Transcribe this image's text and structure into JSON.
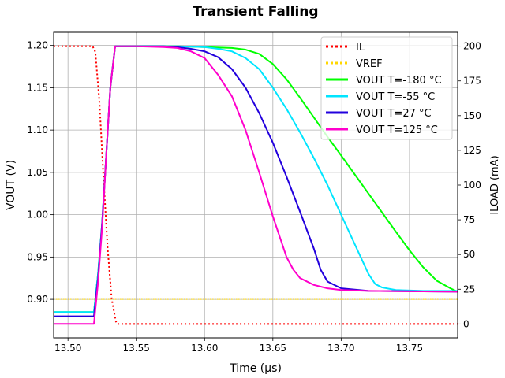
{
  "chart_data": {
    "type": "line",
    "title": "Transient Falling",
    "xlabel": "Time (µs)",
    "ylabel": "VOUT (V)",
    "y2label": "ILOAD (mA)",
    "xlim": [
      13.4895,
      13.7853
    ],
    "ylim": [
      0.8545,
      1.2155
    ],
    "y2lim": [
      -10,
      210
    ],
    "grid": true,
    "legend_position": "top-right",
    "x_ticks": [
      {
        "value": 13.5,
        "label": "13.50"
      },
      {
        "value": 13.55,
        "label": "13.55"
      },
      {
        "value": 13.6,
        "label": "13.60"
      },
      {
        "value": 13.65,
        "label": "13.65"
      },
      {
        "value": 13.7,
        "label": "13.70"
      },
      {
        "value": 13.75,
        "label": "13.75"
      }
    ],
    "y_ticks": [
      {
        "value": 0.9,
        "label": "0.90"
      },
      {
        "value": 0.95,
        "label": "0.95"
      },
      {
        "value": 1.0,
        "label": "1.00"
      },
      {
        "value": 1.05,
        "label": "1.05"
      },
      {
        "value": 1.1,
        "label": "1.10"
      },
      {
        "value": 1.15,
        "label": "1.15"
      },
      {
        "value": 1.2,
        "label": "1.20"
      }
    ],
    "y2_ticks": [
      {
        "value": 0,
        "label": "0"
      },
      {
        "value": 25,
        "label": "25"
      },
      {
        "value": 50,
        "label": "50"
      },
      {
        "value": 75,
        "label": "75"
      },
      {
        "value": 100,
        "label": "100"
      },
      {
        "value": 125,
        "label": "125"
      },
      {
        "value": 150,
        "label": "150"
      },
      {
        "value": 175,
        "label": "175"
      },
      {
        "value": 200,
        "label": "200"
      }
    ],
    "series": [
      {
        "name": "IL",
        "axis": "y2",
        "color": "#ff0000",
        "style": "dotted",
        "x": [
          13.4895,
          13.518,
          13.52,
          13.523,
          13.526,
          13.529,
          13.532,
          13.535,
          13.536,
          13.7853
        ],
        "y": [
          200,
          200,
          196,
          160,
          105,
          55,
          18,
          2,
          0,
          0
        ]
      },
      {
        "name": "VREF",
        "axis": "y",
        "color": "#ffd700",
        "style": "dotted",
        "x": [
          13.4895,
          13.7853
        ],
        "y": [
          0.9,
          0.9
        ]
      },
      {
        "name": "VOUT T=-180 °C",
        "axis": "y",
        "color": "#00ff00",
        "style": "solid",
        "x": [
          13.4895,
          13.519,
          13.522,
          13.525,
          13.528,
          13.531,
          13.5345,
          13.55,
          13.58,
          13.6,
          13.62,
          13.63,
          13.64,
          13.65,
          13.66,
          13.67,
          13.68,
          13.69,
          13.7,
          13.72,
          13.74,
          13.75,
          13.76,
          13.77,
          13.78,
          13.7853
        ],
        "y": [
          0.885,
          0.885,
          0.93,
          0.99,
          1.07,
          1.15,
          1.199,
          1.199,
          1.199,
          1.198,
          1.197,
          1.195,
          1.19,
          1.178,
          1.16,
          1.138,
          1.115,
          1.092,
          1.07,
          1.025,
          0.98,
          0.958,
          0.938,
          0.922,
          0.913,
          0.909
        ]
      },
      {
        "name": "VOUT T=-55 °C",
        "axis": "y",
        "color": "#00e5ff",
        "style": "solid",
        "x": [
          13.4895,
          13.519,
          13.522,
          13.525,
          13.528,
          13.531,
          13.5345,
          13.55,
          13.58,
          13.6,
          13.61,
          13.62,
          13.63,
          13.64,
          13.65,
          13.66,
          13.67,
          13.68,
          13.69,
          13.7,
          13.71,
          13.72,
          13.725,
          13.73,
          13.74,
          13.76,
          13.7853
        ],
        "y": [
          0.885,
          0.885,
          0.93,
          0.99,
          1.07,
          1.15,
          1.199,
          1.199,
          1.199,
          1.198,
          1.196,
          1.193,
          1.185,
          1.172,
          1.15,
          1.125,
          1.097,
          1.067,
          1.035,
          1.0,
          0.965,
          0.93,
          0.918,
          0.914,
          0.911,
          0.91,
          0.91
        ]
      },
      {
        "name": "VOUT T=27 °C",
        "axis": "y",
        "color": "#2200dd",
        "style": "solid",
        "x": [
          13.4895,
          13.519,
          13.522,
          13.525,
          13.528,
          13.531,
          13.5345,
          13.55,
          13.57,
          13.58,
          13.59,
          13.6,
          13.61,
          13.62,
          13.63,
          13.64,
          13.65,
          13.66,
          13.67,
          13.68,
          13.685,
          13.69,
          13.7,
          13.72,
          13.7853
        ],
        "y": [
          0.88,
          0.88,
          0.925,
          0.99,
          1.07,
          1.15,
          1.199,
          1.199,
          1.199,
          1.198,
          1.196,
          1.193,
          1.186,
          1.172,
          1.15,
          1.12,
          1.085,
          1.045,
          1.003,
          0.96,
          0.935,
          0.921,
          0.913,
          0.91,
          0.909
        ]
      },
      {
        "name": "VOUT T=125 °C",
        "axis": "y",
        "color": "#ff00cc",
        "style": "solid",
        "x": [
          13.4895,
          13.519,
          13.522,
          13.525,
          13.528,
          13.531,
          13.5345,
          13.55,
          13.57,
          13.58,
          13.59,
          13.6,
          13.61,
          13.62,
          13.63,
          13.64,
          13.65,
          13.66,
          13.665,
          13.67,
          13.68,
          13.69,
          13.7,
          13.72,
          13.7853
        ],
        "y": [
          0.871,
          0.871,
          0.92,
          0.985,
          1.07,
          1.15,
          1.199,
          1.199,
          1.198,
          1.197,
          1.193,
          1.185,
          1.165,
          1.14,
          1.1,
          1.05,
          0.998,
          0.95,
          0.935,
          0.925,
          0.917,
          0.913,
          0.911,
          0.91,
          0.909
        ]
      }
    ]
  }
}
